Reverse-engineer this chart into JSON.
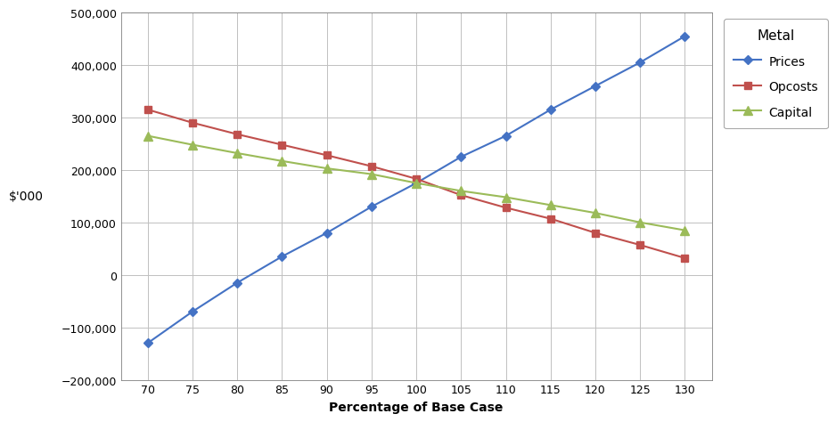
{
  "x": [
    70,
    75,
    80,
    85,
    90,
    95,
    100,
    105,
    110,
    115,
    120,
    125,
    130
  ],
  "prices": [
    -130000,
    -70000,
    -15000,
    35000,
    80000,
    130000,
    175000,
    225000,
    265000,
    315000,
    360000,
    405000,
    455000
  ],
  "opcosts": [
    315000,
    290000,
    268000,
    248000,
    228000,
    207000,
    183000,
    152000,
    128000,
    107000,
    80000,
    57000,
    32000
  ],
  "capital": [
    265000,
    248000,
    232000,
    217000,
    203000,
    192000,
    175000,
    160000,
    148000,
    133000,
    118000,
    100000,
    85000
  ],
  "prices_color": "#4472C4",
  "opcosts_color": "#C0504D",
  "capital_color": "#9BBB59",
  "xlabel": "Percentage of Base Case",
  "ylabel": "$'000",
  "legend_title": "Metal",
  "legend_labels": [
    "Prices",
    "Opcosts",
    "Capital"
  ],
  "ylim": [
    -200000,
    500000
  ],
  "yticks": [
    -200000,
    -100000,
    0,
    100000,
    200000,
    300000,
    400000,
    500000
  ],
  "background_color": "#FFFFFF",
  "plot_bg_color": "#FFFFFF",
  "grid_color": "#C0C0C0"
}
